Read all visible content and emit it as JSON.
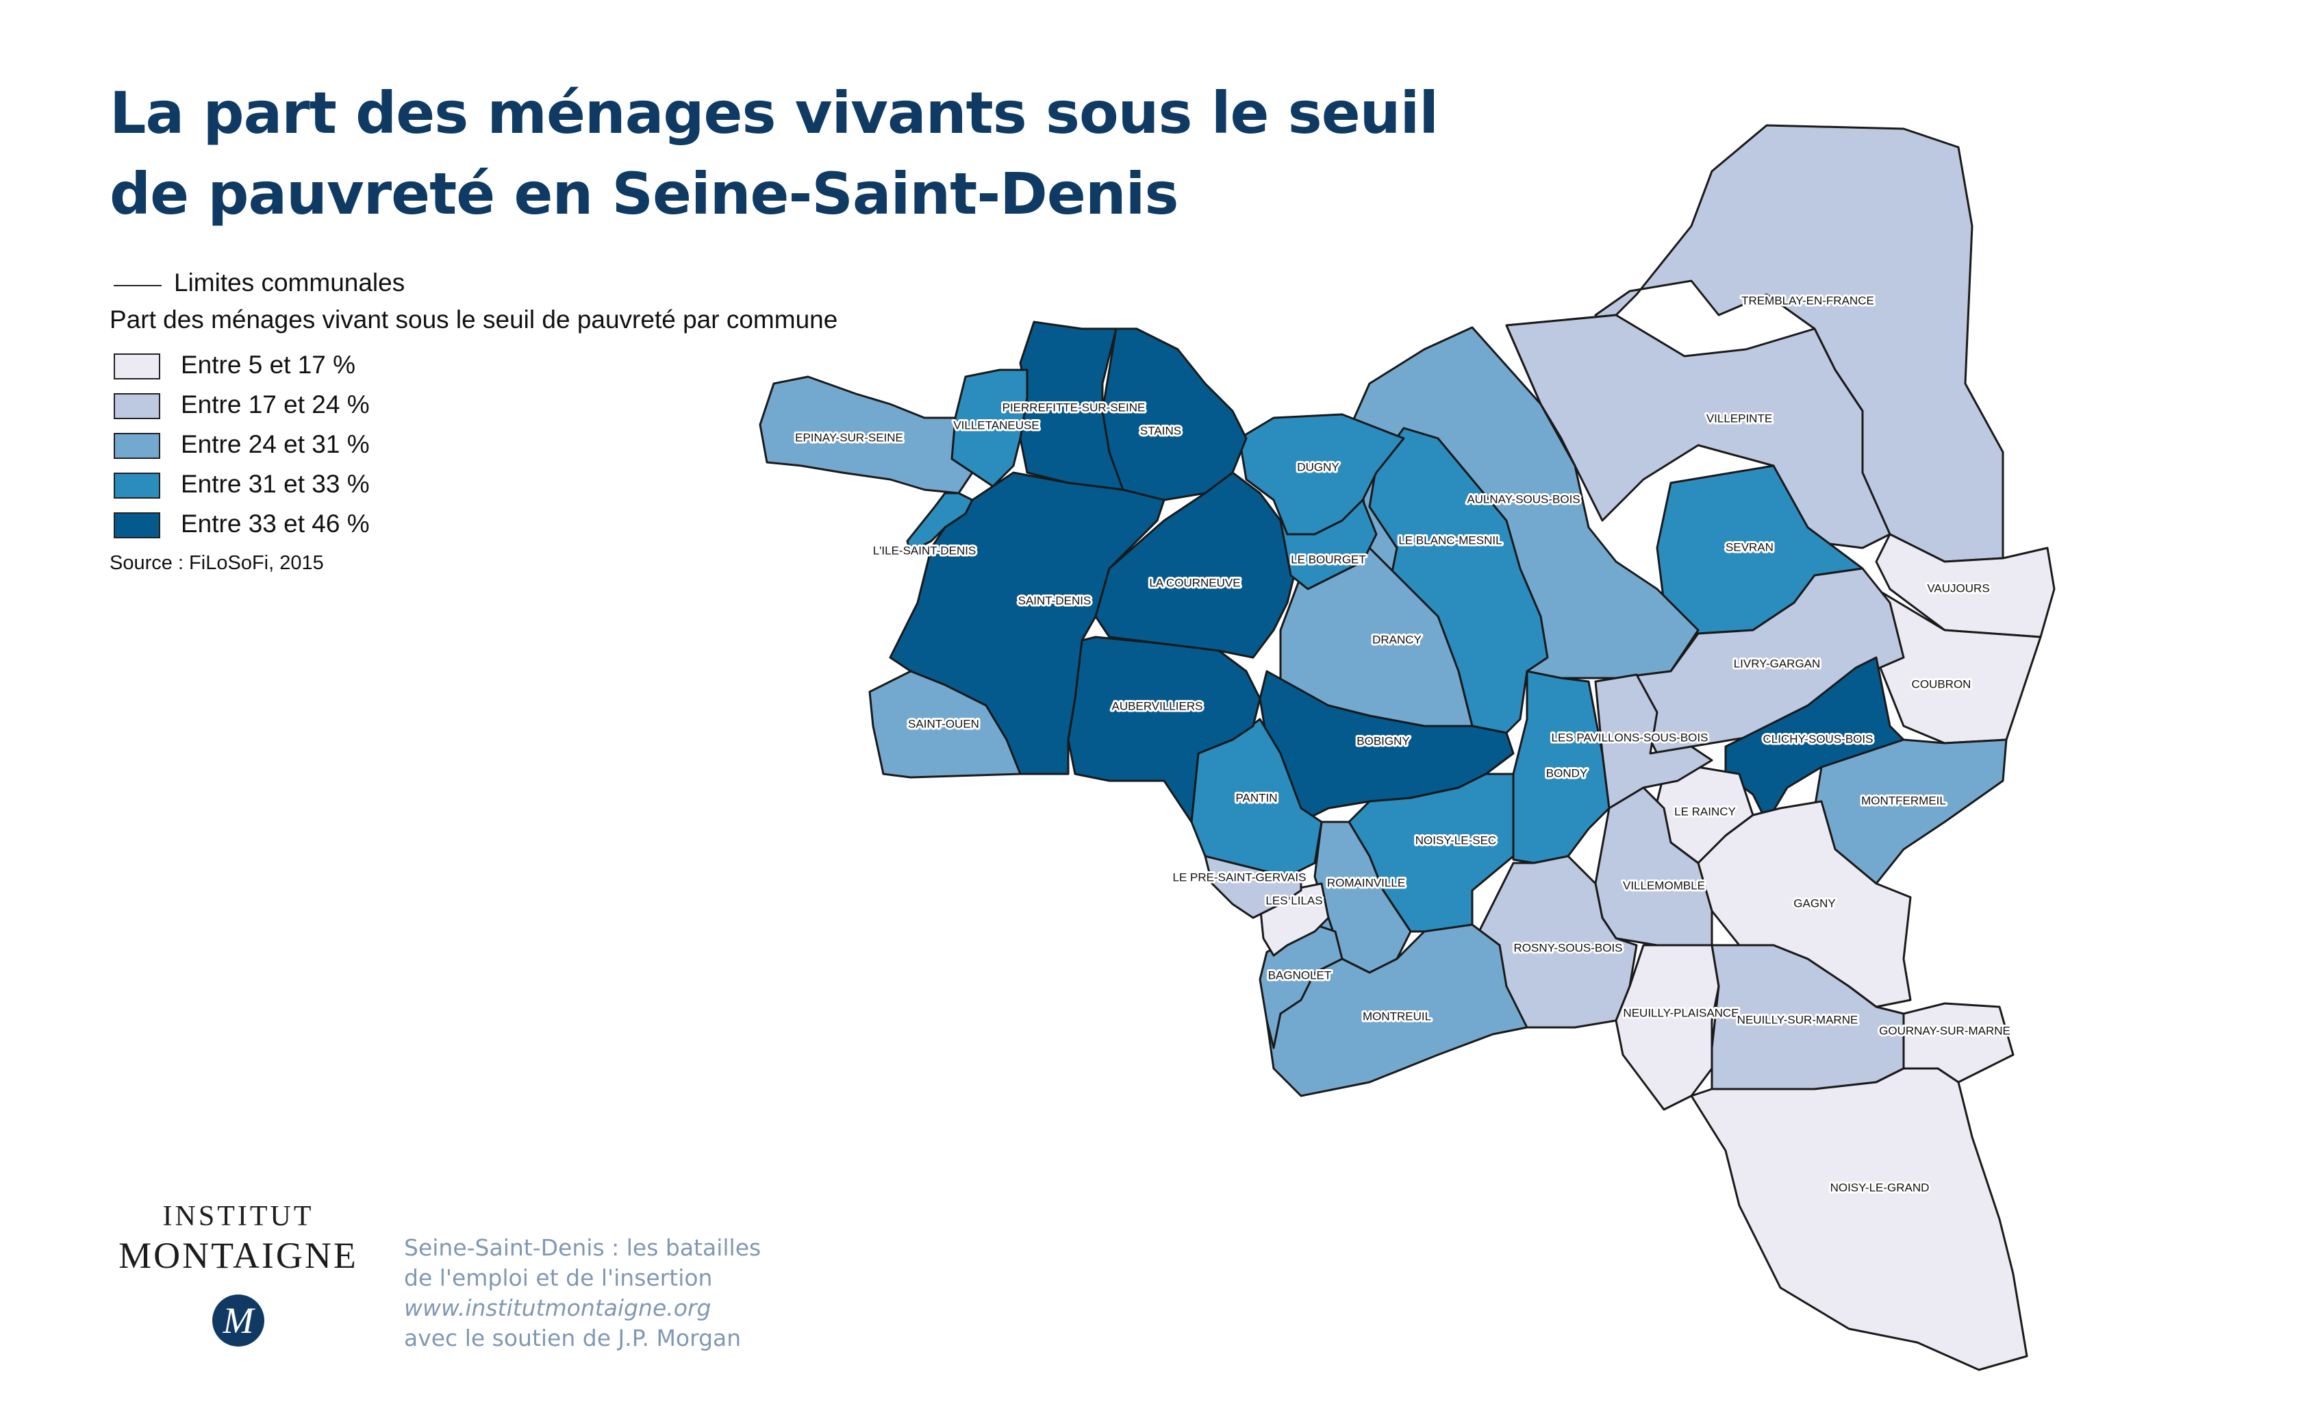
{
  "title": {
    "line1": "La part des ménages vivants sous le seuil",
    "line2": "de pauvreté en Seine-Saint-Denis"
  },
  "legend": {
    "boundary_label": "Limites communales",
    "heading": "Part des ménages vivant sous le seuil de pauvreté par commune",
    "classes": [
      {
        "label": "Entre 5 et 17 %",
        "color": "#eceaf3"
      },
      {
        "label": "Entre 17 et 24 %",
        "color": "#bdc9e1"
      },
      {
        "label": "Entre 24 et 31 %",
        "color": "#74a9cf"
      },
      {
        "label": "Entre 31 et 33 %",
        "color": "#2b8cbe"
      },
      {
        "label": "Entre 33 et 46 %",
        "color": "#045a8d"
      }
    ],
    "source": "Source : FiLoSoFi, 2015"
  },
  "communes": [
    {
      "name": "TREMBLAY-EN-FRANCE",
      "class": 1
    },
    {
      "name": "VILLEPINTE",
      "class": 1
    },
    {
      "name": "VAUJOURS",
      "class": 0
    },
    {
      "name": "COUBRON",
      "class": 0
    },
    {
      "name": "SEVRAN",
      "class": 3
    },
    {
      "name": "AULNAY-SOUS-BOIS",
      "class": 2
    },
    {
      "name": "LIVRY-GARGAN",
      "class": 1
    },
    {
      "name": "CLICHY-SOUS-BOIS",
      "class": 4
    },
    {
      "name": "MONTFERMEIL",
      "class": 2
    },
    {
      "name": "LE RAINCY",
      "class": 0
    },
    {
      "name": "GAGNY",
      "class": 0
    },
    {
      "name": "LES PAVILLONS-SOUS-BOIS",
      "class": 1
    },
    {
      "name": "BONDY",
      "class": 3
    },
    {
      "name": "VILLEMOMBLE",
      "class": 1
    },
    {
      "name": "ROSNY-SOUS-BOIS",
      "class": 1
    },
    {
      "name": "NEUILLY-PLAISANCE",
      "class": 0
    },
    {
      "name": "NEUILLY-SUR-MARNE",
      "class": 1
    },
    {
      "name": "GOURNAY-SUR-MARNE",
      "class": 0
    },
    {
      "name": "NOISY-LE-GRAND",
      "class": 0
    },
    {
      "name": "LE BLANC-MESNIL",
      "class": 3
    },
    {
      "name": "DRANCY",
      "class": 2
    },
    {
      "name": "BOBIGNY",
      "class": 4
    },
    {
      "name": "NOISY-LE-SEC",
      "class": 3
    },
    {
      "name": "ROMAINVILLE",
      "class": 2
    },
    {
      "name": "MONTREUIL",
      "class": 2
    },
    {
      "name": "BAGNOLET",
      "class": 2
    },
    {
      "name": "LES LILAS",
      "class": 0
    },
    {
      "name": "LE PRE-SAINT-GERVAIS",
      "class": 1
    },
    {
      "name": "PANTIN",
      "class": 3
    },
    {
      "name": "AUBERVILLIERS",
      "class": 4
    },
    {
      "name": "LA COURNEUVE",
      "class": 4
    },
    {
      "name": "LE BOURGET",
      "class": 3
    },
    {
      "name": "DUGNY",
      "class": 3
    },
    {
      "name": "STAINS",
      "class": 4
    },
    {
      "name": "PIERREFITTE-SUR-SEINE",
      "class": 4
    },
    {
      "name": "VILLETANEUSE",
      "class": 3
    },
    {
      "name": "EPINAY-SUR-SEINE",
      "class": 2
    },
    {
      "name": "L'ILE-SAINT-DENIS",
      "class": 3
    },
    {
      "name": "SAINT-DENIS",
      "class": 4
    },
    {
      "name": "SAINT-OUEN",
      "class": 2
    }
  ],
  "footer": {
    "logo_line1": "INSTITUT",
    "logo_line2": "MONTAIGNE",
    "logo_seal": "M",
    "line1": "Seine-Saint-Denis : les batailles",
    "line2": "de l'emploi et de l'insertion",
    "url": "www.institutmontaigne.org",
    "line4": "avec le soutien de J.P. Morgan"
  }
}
